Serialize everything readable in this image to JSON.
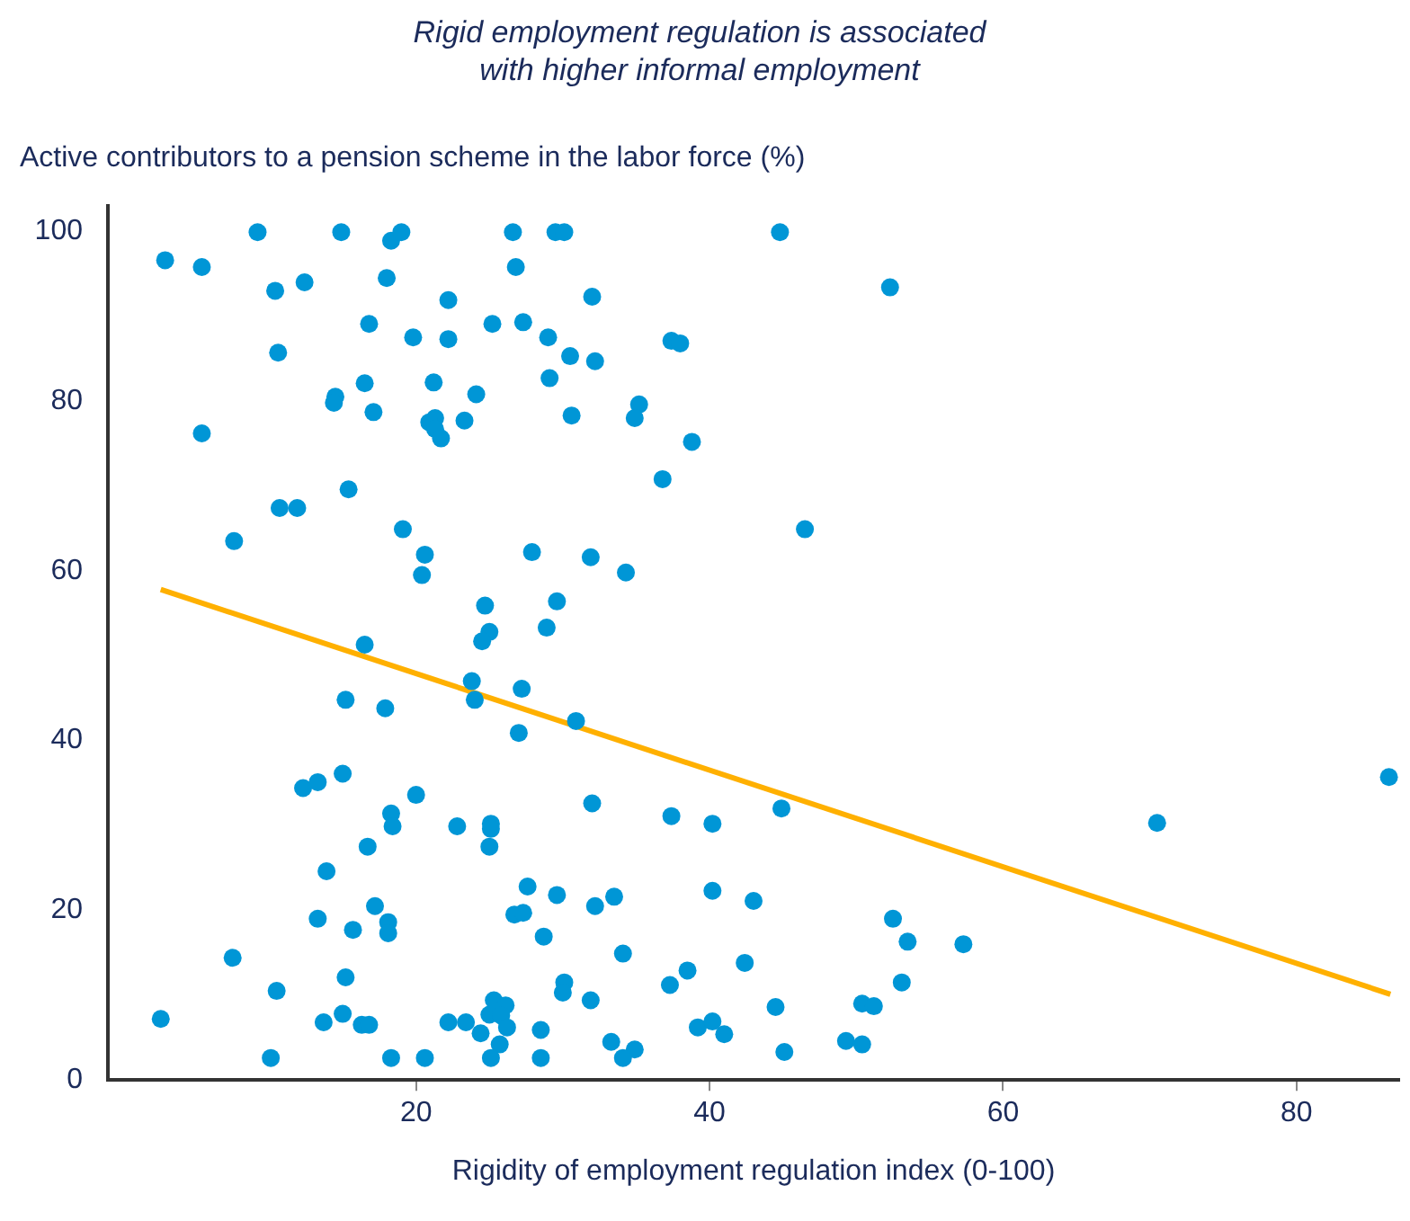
{
  "chart_data": {
    "type": "scatter",
    "title": "Rigid employment regulation is associated\nwith higher informal employment",
    "ylabel": "Active contributors to a pension scheme in the labor force (%)",
    "xlabel": "Rigidity of employment regulation index (0-100)",
    "xlim": [
      -1,
      87
    ],
    "ylim": [
      0,
      103
    ],
    "xticks": [
      20,
      40,
      60,
      80
    ],
    "yticks": [
      0,
      20,
      40,
      60,
      80,
      100
    ],
    "grid": false,
    "legend": false,
    "marker": "circle",
    "series": [
      {
        "color": "#0096d6",
        "x": [
          2.9,
          5.4,
          9.2,
          14.9,
          18.3,
          19.0,
          26.6,
          29.5,
          30.1,
          44.8,
          52.3,
          10.4,
          12.4,
          18.0,
          26.8,
          22.2,
          32.0,
          16.8,
          19.8,
          22.2,
          25.2,
          27.3,
          29.0,
          30.5,
          32.2,
          37.4,
          38.0,
          10.6,
          16.5,
          21.2,
          24.1,
          29.1,
          14.5,
          14.4,
          17.1,
          21.3,
          20.9,
          21.3,
          21.7,
          23.3,
          5.4,
          30.6,
          35.2,
          34.9,
          38.8,
          15.4,
          10.7,
          11.9,
          7.6,
          19.1,
          20.6,
          20.4,
          27.9,
          36.8,
          46.5,
          31.9,
          34.3,
          24.7,
          25.0,
          24.5,
          28.9,
          29.6,
          16.5,
          23.8,
          24.0,
          27.2,
          27.0,
          15.2,
          17.9,
          30.9,
          15.0,
          12.3,
          13.3,
          20.0,
          18.3,
          18.4,
          22.8,
          25.1,
          25.1,
          25.0,
          16.7,
          32.0,
          37.4,
          40.2,
          44.9,
          70.5,
          86.3,
          13.9,
          17.2,
          13.3,
          15.7,
          18.1,
          18.1,
          27.6,
          29.6,
          26.7,
          27.3,
          28.7,
          32.2,
          33.5,
          40.2,
          43.0,
          52.5,
          53.5,
          57.3,
          34.1,
          7.5,
          10.5,
          15.2,
          38.5,
          42.4,
          37.3,
          53.1,
          30.1,
          30.0,
          31.9,
          2.6,
          13.7,
          15.0,
          16.3,
          16.8,
          22.2,
          23.4,
          25.3,
          26.1,
          25.0,
          25.8,
          26.2,
          24.4,
          25.7,
          28.5,
          44.5,
          50.4,
          51.2,
          39.2,
          40.2,
          41.0,
          33.3,
          34.9,
          49.3,
          50.4,
          10.1,
          18.3,
          20.6,
          25.1,
          28.5,
          34.1,
          45.1
        ],
        "values": [
          96.6,
          95.8,
          99.9,
          99.9,
          98.9,
          99.9,
          99.9,
          99.9,
          99.9,
          99.9,
          93.4,
          93.0,
          94.0,
          94.5,
          95.8,
          91.9,
          92.3,
          89.1,
          87.5,
          87.3,
          89.1,
          89.3,
          87.5,
          85.3,
          84.7,
          87.1,
          86.8,
          85.7,
          82.1,
          82.2,
          80.8,
          82.7,
          80.5,
          79.8,
          78.7,
          78.0,
          77.5,
          76.7,
          75.6,
          77.7,
          76.2,
          78.3,
          79.6,
          78.0,
          75.2,
          69.6,
          67.4,
          67.4,
          63.5,
          64.9,
          61.9,
          59.5,
          62.2,
          70.8,
          64.9,
          61.6,
          59.8,
          55.9,
          52.8,
          51.7,
          53.3,
          56.4,
          51.3,
          47.0,
          44.8,
          46.1,
          40.9,
          44.8,
          43.8,
          42.3,
          36.1,
          34.4,
          35.1,
          33.6,
          31.4,
          29.9,
          29.9,
          30.2,
          29.6,
          27.5,
          27.5,
          32.6,
          31.1,
          30.2,
          32.0,
          30.3,
          35.7,
          24.6,
          20.5,
          19.0,
          17.7,
          18.6,
          17.3,
          22.8,
          21.8,
          19.5,
          19.7,
          16.9,
          20.5,
          21.6,
          22.3,
          21.1,
          19.0,
          16.3,
          16.0,
          14.9,
          14.4,
          10.5,
          12.1,
          12.9,
          13.8,
          11.2,
          11.5,
          11.5,
          10.3,
          9.4,
          7.2,
          6.8,
          7.8,
          6.5,
          6.5,
          6.8,
          6.8,
          9.4,
          8.8,
          7.7,
          7.6,
          6.2,
          5.5,
          4.2,
          5.9,
          8.6,
          9.0,
          8.7,
          6.2,
          6.9,
          5.4,
          4.5,
          3.6,
          4.6,
          4.2,
          2.6,
          2.6,
          2.6,
          2.6,
          2.6,
          2.6,
          3.3
        ]
      },
      {
        "type": "line",
        "color": "#ffb000",
        "x": [
          2.6,
          86.4
        ],
        "values": [
          57.8,
          10.1
        ],
        "marker": "none"
      }
    ]
  }
}
